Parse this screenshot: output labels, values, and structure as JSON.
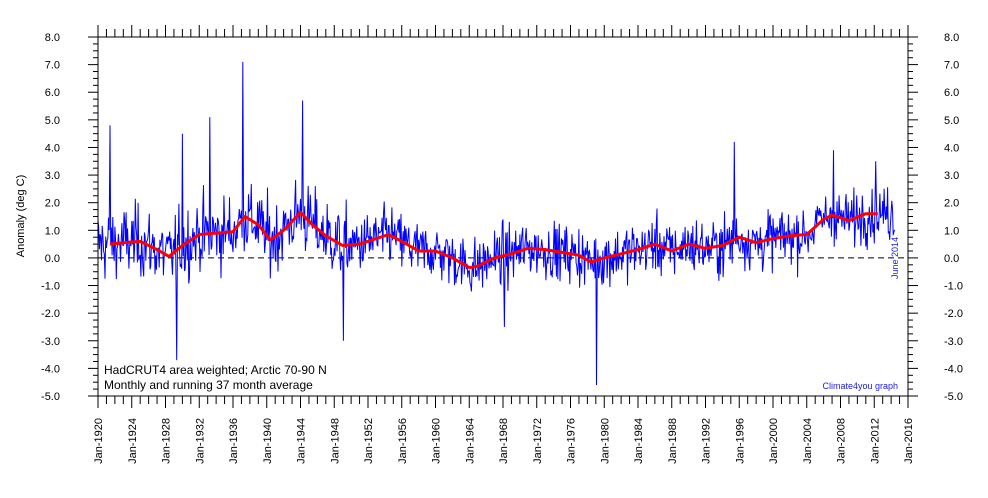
{
  "chart_data": {
    "type": "line",
    "ylabel": "Anomaly (deg C)",
    "ylim": [
      -5.0,
      8.0
    ],
    "xlim": [
      "1920-01",
      "2016-01"
    ],
    "y_ticks": [
      "8.0",
      "7.0",
      "6.0",
      "5.0",
      "4.0",
      "3.0",
      "2.0",
      "1.0",
      "0.0",
      "-1.0",
      "-2.0",
      "-3.0",
      "-4.0",
      "-5.0"
    ],
    "x_ticks": [
      "Jan-1920",
      "Jan-1924",
      "Jan-1928",
      "Jan-1932",
      "Jan-1936",
      "Jan-1940",
      "Jan-1944",
      "Jan-1948",
      "Jan-1952",
      "Jan-1956",
      "Jan-1960",
      "Jan-1964",
      "Jan-1968",
      "Jan-1972",
      "Jan-1976",
      "Jan-1980",
      "Jan-1984",
      "Jan-1988",
      "Jan-1992",
      "Jan-1996",
      "Jan-2000",
      "Jan-2004",
      "Jan-2008",
      "Jan-2012",
      "Jan-2016"
    ],
    "annotations": [
      "HadCRUT4 area weighted; Arctic 70-90 N",
      "Monthly and running 37 month average",
      "Climate4you graph",
      "June 2014"
    ],
    "zero_line": "dashed",
    "series": [
      {
        "color": "#0000ff",
        "approx_range": [
          -4.6,
          7.1
        ],
        "peaks": [
          {
            "x": "1921-06",
            "y": 4.8
          },
          {
            "x": "1929-05",
            "y": -3.7
          },
          {
            "x": "1930-01",
            "y": 4.5
          },
          {
            "x": "1933-04",
            "y": 5.1
          },
          {
            "x": "1937-03",
            "y": 7.1
          },
          {
            "x": "1944-04",
            "y": 5.7
          },
          {
            "x": "1949-02",
            "y": -3.0
          },
          {
            "x": "1968-03",
            "y": -2.5
          },
          {
            "x": "1979-02",
            "y": -4.6
          },
          {
            "x": "1995-06",
            "y": 4.2
          },
          {
            "x": "2007-03",
            "y": 3.9
          },
          {
            "x": "2012-03",
            "y": 3.5
          }
        ]
      },
      {
        "color": "#ff0000",
        "x": [
          "1921-06",
          "1923",
          "1925",
          "1927",
          "1928-06",
          "1930",
          "1932",
          "1934",
          "1936",
          "1937-06",
          "1939",
          "1940-06",
          "1942",
          "1944",
          "1945-06",
          "1947",
          "1949",
          "1951",
          "1953",
          "1954-06",
          "1956",
          "1958",
          "1960",
          "1962",
          "1964",
          "1965",
          "1967",
          "1969",
          "1971",
          "1973",
          "1975",
          "1977",
          "1978-06",
          "1980",
          "1982",
          "1984",
          "1986",
          "1988",
          "1990",
          "1992",
          "1994",
          "1996",
          "1998",
          "2000",
          "2002",
          "2004",
          "2006",
          "2007",
          "2009",
          "2011",
          "2012-06"
        ],
        "values": [
          0.5,
          0.55,
          0.6,
          0.3,
          0.05,
          0.45,
          0.85,
          0.9,
          0.95,
          1.5,
          1.2,
          0.65,
          1.0,
          1.65,
          1.2,
          0.8,
          0.45,
          0.5,
          0.7,
          0.85,
          0.6,
          0.25,
          0.25,
          0.0,
          -0.35,
          -0.3,
          0.0,
          0.15,
          0.35,
          0.3,
          0.2,
          0.1,
          -0.15,
          0.0,
          0.15,
          0.3,
          0.5,
          0.25,
          0.5,
          0.35,
          0.45,
          0.75,
          0.55,
          0.7,
          0.8,
          0.85,
          1.4,
          1.55,
          1.35,
          1.6,
          1.6
        ]
      }
    ]
  }
}
